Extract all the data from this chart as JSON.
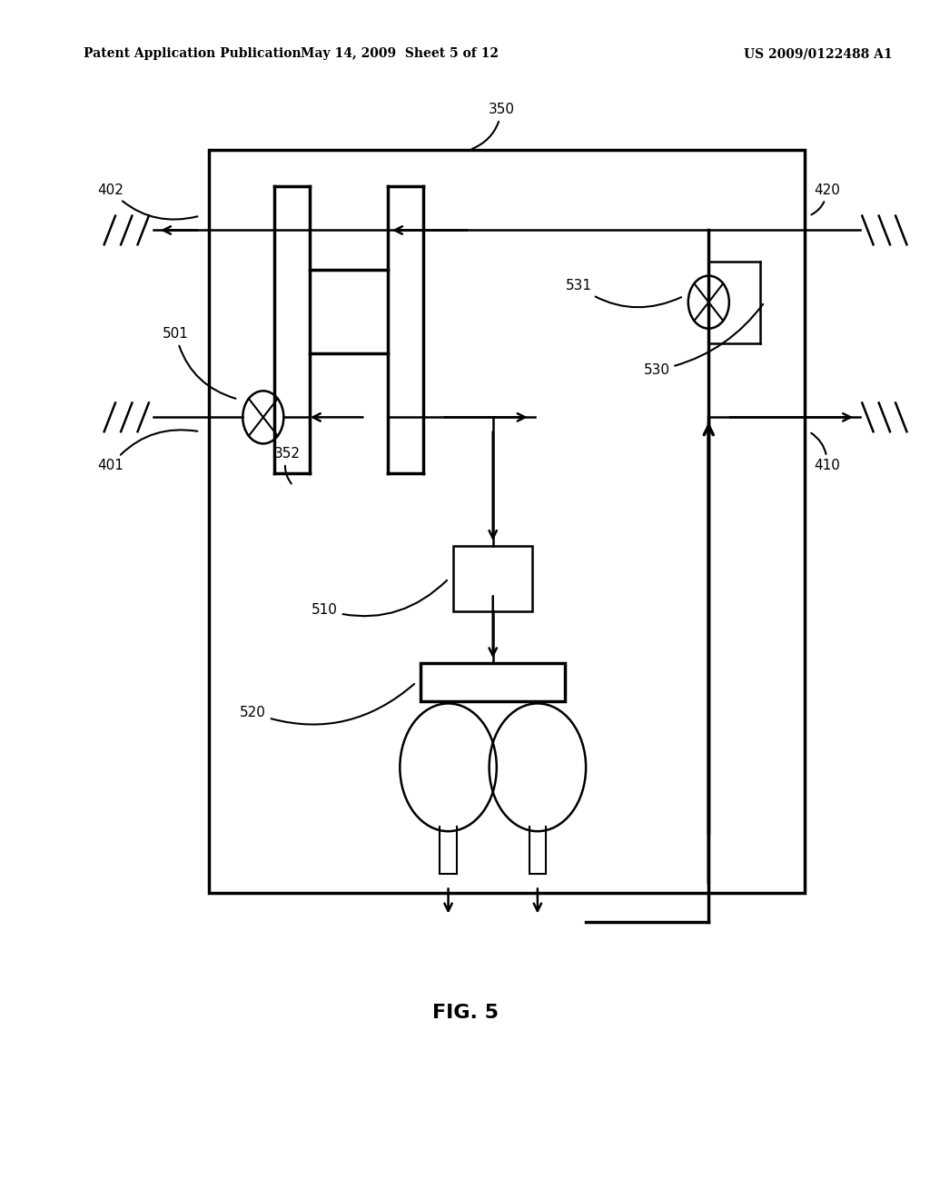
{
  "bg_color": "#ffffff",
  "line_color": "#000000",
  "header_left": "Patent Application Publication",
  "header_mid": "May 14, 2009  Sheet 5 of 12",
  "header_right": "US 2009/0122488 A1",
  "fig_label": "FIG. 5"
}
